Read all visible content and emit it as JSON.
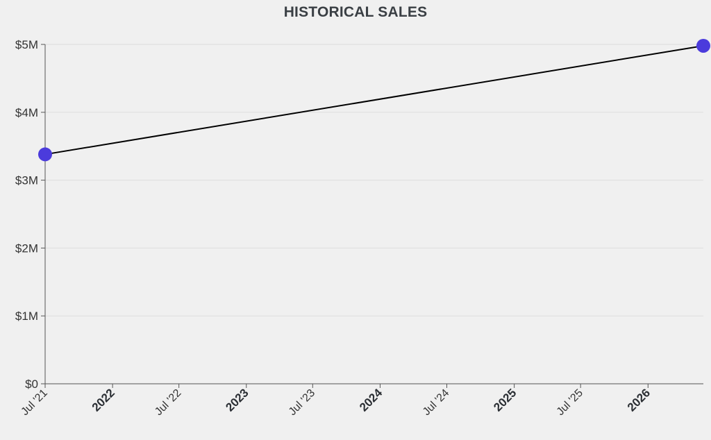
{
  "chart_data": {
    "type": "line",
    "title": "HISTORICAL SALES",
    "xlabel": "",
    "ylabel": "",
    "x_ticks": [
      {
        "label": "Jul '21",
        "date": "2021-07-01",
        "major": false
      },
      {
        "label": "2022",
        "date": "2022-01-01",
        "major": true
      },
      {
        "label": "Jul '22",
        "date": "2022-07-01",
        "major": false
      },
      {
        "label": "2023",
        "date": "2023-01-01",
        "major": true
      },
      {
        "label": "Jul '23",
        "date": "2023-07-01",
        "major": false
      },
      {
        "label": "2024",
        "date": "2024-01-01",
        "major": true
      },
      {
        "label": "Jul '24",
        "date": "2024-07-01",
        "major": false
      },
      {
        "label": "2025",
        "date": "2025-01-01",
        "major": true
      },
      {
        "label": "Jul '25",
        "date": "2025-07-01",
        "major": false
      },
      {
        "label": "2026",
        "date": "2026-01-01",
        "major": true
      }
    ],
    "y_ticks": [
      {
        "label": "$0",
        "value": 0
      },
      {
        "label": "$1M",
        "value": 1000000
      },
      {
        "label": "$2M",
        "value": 2000000
      },
      {
        "label": "$3M",
        "value": 3000000
      },
      {
        "label": "$4M",
        "value": 4000000
      },
      {
        "label": "$5M",
        "value": 5000000
      }
    ],
    "xlim": [
      "2021-07-01",
      "2026-06-01"
    ],
    "ylim": [
      0,
      5000000
    ],
    "grid": true,
    "series": [
      {
        "color": "#000000",
        "marker_color": "#4b3bdc",
        "points": [
          {
            "x": "2021-07-01",
            "y": 3380000
          },
          {
            "x": "2026-06-01",
            "y": 4980000
          }
        ]
      }
    ]
  }
}
